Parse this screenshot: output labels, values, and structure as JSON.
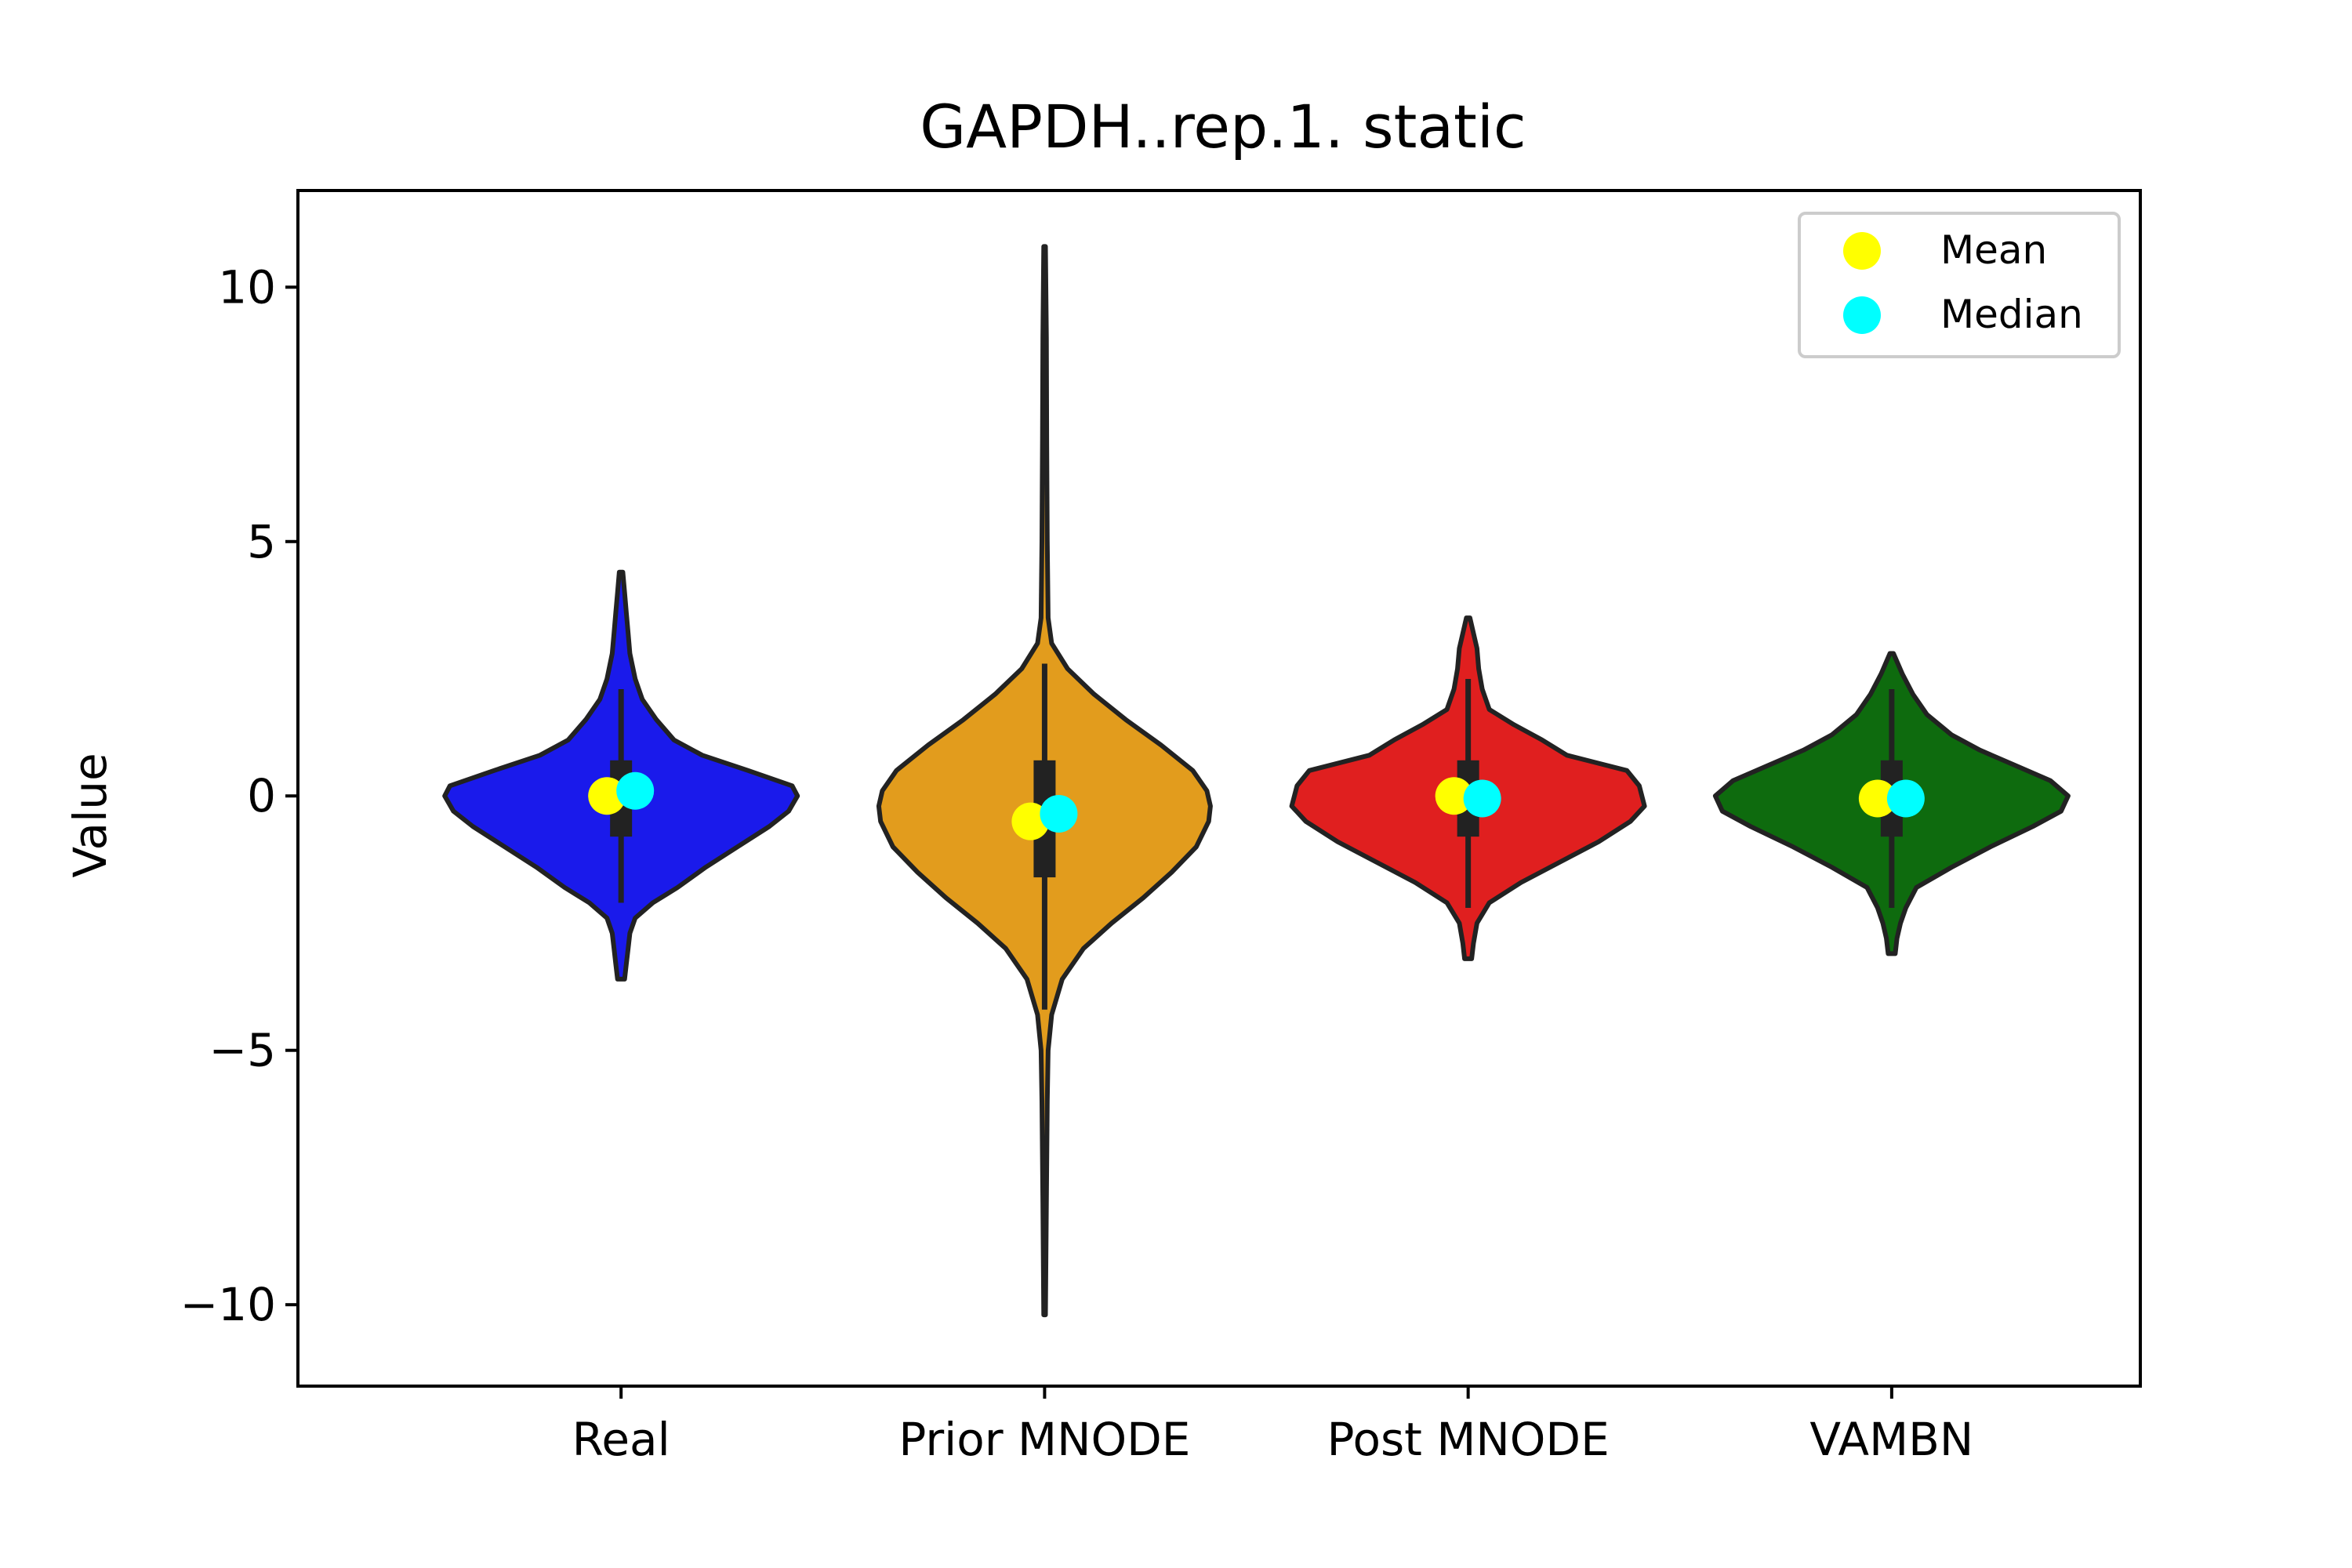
{
  "chart_data": {
    "type": "violin",
    "title": "GAPDH..rep.1. static",
    "xlabel": "",
    "ylabel": "Value",
    "ylim": [
      -11.6,
      11.9
    ],
    "yticks": [
      -10,
      -5,
      0,
      5,
      10
    ],
    "ytick_labels": [
      "−10",
      "−5",
      "0",
      "5",
      "10"
    ],
    "grid": false,
    "legend": {
      "placement": "top-right",
      "entries": [
        {
          "label": "Mean",
          "color": "#ffff00"
        },
        {
          "label": "Median",
          "color": "#00ffff"
        }
      ]
    },
    "categories": [
      "Real",
      "Prior MNODE",
      "Post MNODE",
      "VAMBN"
    ],
    "series": [
      {
        "category": "Real",
        "color": "#1a1aeb",
        "mean": 0.0,
        "median": 0.1,
        "q1": -0.8,
        "q3": 0.7,
        "whisker_low": -2.1,
        "whisker_high": 2.1,
        "min": -3.6,
        "max": 4.4,
        "density": [
          [
            -3.6,
            0.02
          ],
          [
            -3.3,
            0.03
          ],
          [
            -3.0,
            0.04
          ],
          [
            -2.7,
            0.05
          ],
          [
            -2.4,
            0.08
          ],
          [
            -2.1,
            0.18
          ],
          [
            -1.8,
            0.32
          ],
          [
            -1.4,
            0.48
          ],
          [
            -1.0,
            0.66
          ],
          [
            -0.6,
            0.84
          ],
          [
            -0.3,
            0.95
          ],
          [
            0.0,
            1.0
          ],
          [
            0.2,
            0.97
          ],
          [
            0.5,
            0.72
          ],
          [
            0.8,
            0.46
          ],
          [
            1.1,
            0.3
          ],
          [
            1.5,
            0.2
          ],
          [
            1.9,
            0.12
          ],
          [
            2.3,
            0.08
          ],
          [
            2.8,
            0.05
          ],
          [
            3.2,
            0.04
          ],
          [
            3.6,
            0.03
          ],
          [
            4.0,
            0.02
          ],
          [
            4.4,
            0.01
          ]
        ]
      },
      {
        "category": "Prior MNODE",
        "color": "#e29c1d",
        "mean": -0.5,
        "median": -0.35,
        "q1": -1.6,
        "q3": 0.7,
        "whisker_low": -4.2,
        "whisker_high": 2.6,
        "min": -10.2,
        "max": 10.8,
        "density": [
          [
            -10.2,
            0.005
          ],
          [
            -8.0,
            0.01
          ],
          [
            -6.0,
            0.015
          ],
          [
            -5.0,
            0.02
          ],
          [
            -4.3,
            0.04
          ],
          [
            -3.6,
            0.1
          ],
          [
            -3.0,
            0.22
          ],
          [
            -2.5,
            0.38
          ],
          [
            -2.0,
            0.56
          ],
          [
            -1.5,
            0.72
          ],
          [
            -1.0,
            0.86
          ],
          [
            -0.5,
            0.93
          ],
          [
            -0.2,
            0.94
          ],
          [
            0.1,
            0.92
          ],
          [
            0.5,
            0.84
          ],
          [
            1.0,
            0.66
          ],
          [
            1.5,
            0.46
          ],
          [
            2.0,
            0.28
          ],
          [
            2.5,
            0.13
          ],
          [
            3.0,
            0.04
          ],
          [
            3.5,
            0.02
          ],
          [
            5.0,
            0.015
          ],
          [
            7.0,
            0.012
          ],
          [
            9.0,
            0.01
          ],
          [
            10.8,
            0.005
          ]
        ]
      },
      {
        "category": "Post MNODE",
        "color": "#e01f1f",
        "mean": 0.0,
        "median": -0.05,
        "q1": -0.8,
        "q3": 0.7,
        "whisker_low": -2.2,
        "whisker_high": 2.3,
        "min": -3.2,
        "max": 3.5,
        "density": [
          [
            -3.2,
            0.02
          ],
          [
            -2.9,
            0.03
          ],
          [
            -2.5,
            0.05
          ],
          [
            -2.1,
            0.12
          ],
          [
            -1.7,
            0.3
          ],
          [
            -1.3,
            0.52
          ],
          [
            -0.9,
            0.74
          ],
          [
            -0.5,
            0.92
          ],
          [
            -0.2,
            1.0
          ],
          [
            0.2,
            0.97
          ],
          [
            0.5,
            0.9
          ],
          [
            0.8,
            0.56
          ],
          [
            1.1,
            0.42
          ],
          [
            1.4,
            0.26
          ],
          [
            1.7,
            0.12
          ],
          [
            2.1,
            0.08
          ],
          [
            2.5,
            0.06
          ],
          [
            2.9,
            0.05
          ],
          [
            3.2,
            0.03
          ],
          [
            3.5,
            0.01
          ]
        ]
      },
      {
        "category": "VAMBN",
        "color": "#0e6b0e",
        "mean": -0.05,
        "median": -0.05,
        "q1": -0.8,
        "q3": 0.7,
        "whisker_low": -2.2,
        "whisker_high": 2.1,
        "min": -3.1,
        "max": 2.8,
        "density": [
          [
            -3.1,
            0.02
          ],
          [
            -2.8,
            0.03
          ],
          [
            -2.5,
            0.05
          ],
          [
            -2.2,
            0.08
          ],
          [
            -1.8,
            0.14
          ],
          [
            -1.4,
            0.34
          ],
          [
            -1.0,
            0.56
          ],
          [
            -0.6,
            0.8
          ],
          [
            -0.3,
            0.96
          ],
          [
            0.0,
            1.0
          ],
          [
            0.3,
            0.9
          ],
          [
            0.6,
            0.7
          ],
          [
            0.9,
            0.5
          ],
          [
            1.2,
            0.34
          ],
          [
            1.6,
            0.2
          ],
          [
            2.0,
            0.12
          ],
          [
            2.4,
            0.06
          ],
          [
            2.8,
            0.01
          ]
        ]
      }
    ]
  }
}
